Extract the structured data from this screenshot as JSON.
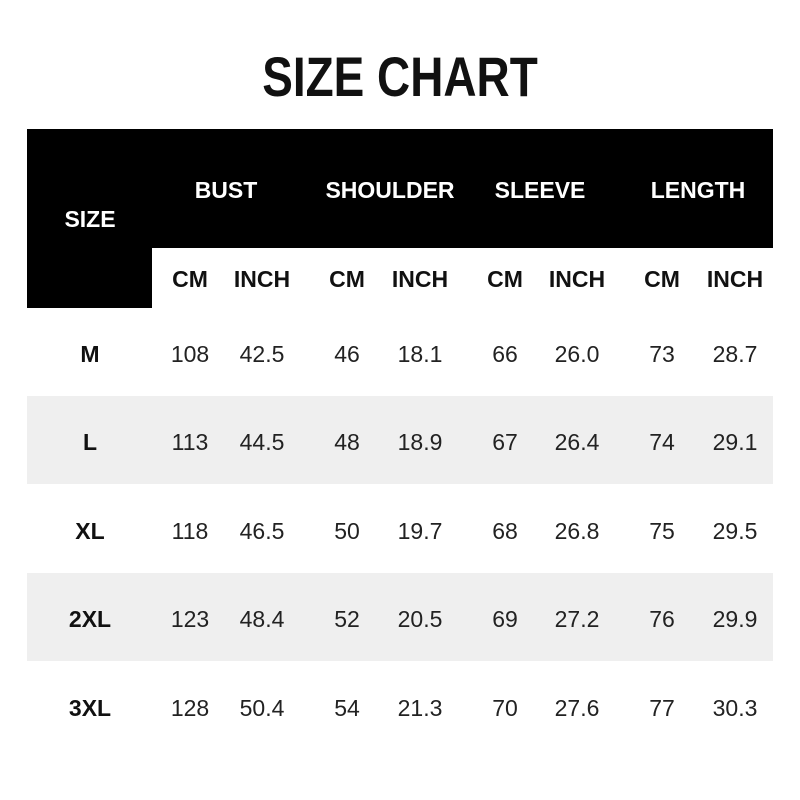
{
  "title": "SIZE CHART",
  "header": {
    "size": "SIZE",
    "groups": [
      "BUST",
      "SHOULDER",
      "SLEEVE",
      "LENGTH"
    ],
    "units": [
      "CM",
      "INCH",
      "CM",
      "INCH",
      "CM",
      "INCH",
      "CM",
      "INCH"
    ]
  },
  "rows": [
    {
      "size": "M",
      "values": [
        "108",
        "42.5",
        "46",
        "18.1",
        "66",
        "26.0",
        "73",
        "28.7"
      ]
    },
    {
      "size": "L",
      "values": [
        "113",
        "44.5",
        "48",
        "18.9",
        "67",
        "26.4",
        "74",
        "29.1"
      ]
    },
    {
      "size": "XL",
      "values": [
        "118",
        "46.5",
        "50",
        "19.7",
        "68",
        "26.8",
        "75",
        "29.5"
      ]
    },
    {
      "size": "2XL",
      "values": [
        "123",
        "48.4",
        "52",
        "20.5",
        "69",
        "27.2",
        "76",
        "29.9"
      ]
    },
    {
      "size": "3XL",
      "values": [
        "128",
        "50.4",
        "54",
        "21.3",
        "70",
        "27.6",
        "77",
        "30.3"
      ]
    }
  ],
  "colors": {
    "header_bg": "#000000",
    "stripe": "#efefef"
  }
}
